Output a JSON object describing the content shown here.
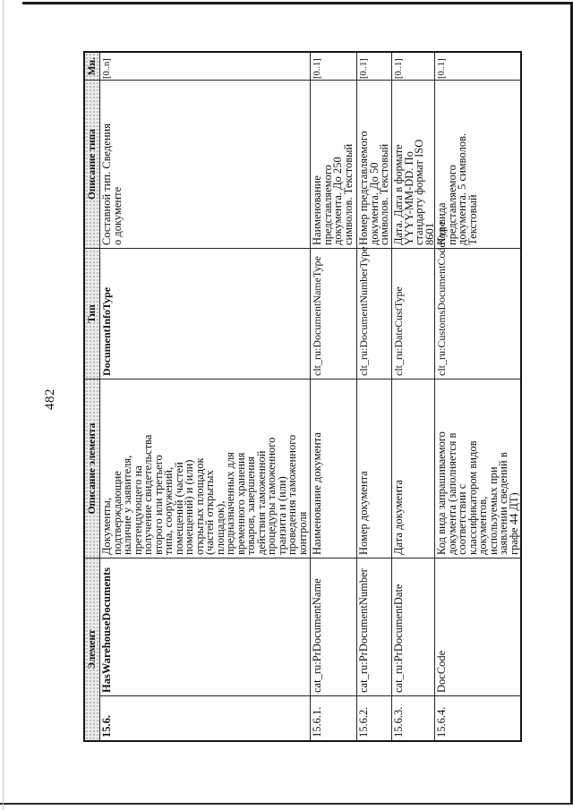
{
  "page": {
    "number": "482"
  },
  "table": {
    "headers": {
      "element": "Элемент",
      "element_description": "Описание элемента",
      "type": "Тип",
      "type_description": "Описание типа",
      "multiplicity": "Мн."
    },
    "rows": [
      {
        "num": "15.6.",
        "name": "HasWarehouseDocuments",
        "description": "Документы,\nподтверждающие\nналичие у заявителя,\nпретендующего на\nполучение свидетельства\nвторого или третьего\nтипа, сооружений,\nпомещений (частей\nпомещений) и (или)\nоткрытых площадок\n(частей открытых\nплощадок),\nпредназначенных для\nвременного хранения\nтоваров, завершения\nдействия таможенной\nпроцедуры таможенного\nтранзита и (или)\nпроведения таможенного\nконтроля",
        "type": "DocumentInfoType",
        "type_description": "Составной тип. Сведения\nо документе",
        "multiplicity": "[0..n]"
      },
      {
        "num": "15.6.1.",
        "name": "cat_ru:PrDocumentName",
        "description": "Наименование документа",
        "type": "clt_ru:DocumentNameType",
        "type_description": "Наименование\nпредставляемого\nдокумента. До 250\nсимволов. Текстовый",
        "multiplicity": "[0..1]"
      },
      {
        "num": "15.6.2.",
        "name": "cat_ru:PrDocumentNumber",
        "description": "Номер документа",
        "type": "clt_ru:DocumentNumberType",
        "type_description": "Номер представляемого\nдокумента. До 50\nсимволов. Текстовый",
        "multiplicity": "[0..1]"
      },
      {
        "num": "15.6.3.",
        "name": "cat_ru:PrDocumentDate",
        "description": "Дата документа",
        "type": "clt_ru:DateCustType",
        "type_description": "Дата. Дата в формате\nYYYY-MM-DD. По\nстандарту формат ISO\n8601",
        "multiplicity": "[0..1]"
      },
      {
        "num": "15.6.4.",
        "name": "DocCode",
        "description": "Код вида запрашиваемого\nдокумента (заполняется в\nсоответствии с\nклассификатором видов\nдокументов,\nиспользуемых при\nзаявлении сведений в\nграфе 44 ДТ)",
        "type": "clt_ru:CustomsDocumentCodeType",
        "type_description": "Код вида\nпредставляемого\nдокумента. 5 символов.\nТекстовый",
        "multiplicity": "[0..1]"
      }
    ]
  }
}
